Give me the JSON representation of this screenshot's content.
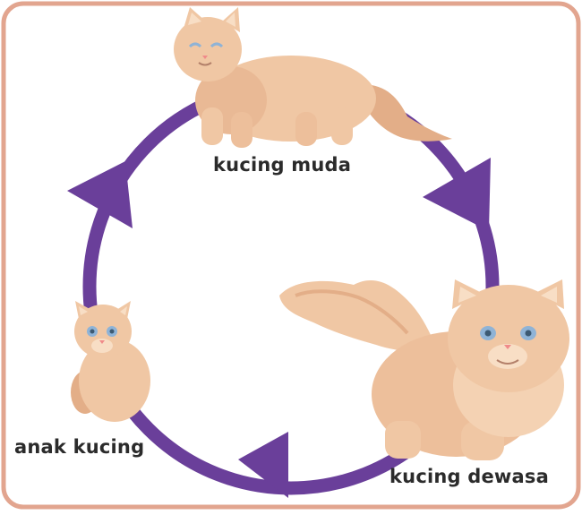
{
  "labels": {
    "young_cat": "kucing muda",
    "kitten": "anak kucing",
    "adult_cat": "kucing dewasa"
  },
  "colors": {
    "frame": "#E2A58F",
    "cycle": "#6A3F9A",
    "fur": "#F0C7A4",
    "fur_dark": "#E3AE88",
    "fur_light": "#F8DEC5",
    "eye": "#8FB3D6",
    "nose": "#F08A8A",
    "label_text": "#2b2b2b"
  }
}
